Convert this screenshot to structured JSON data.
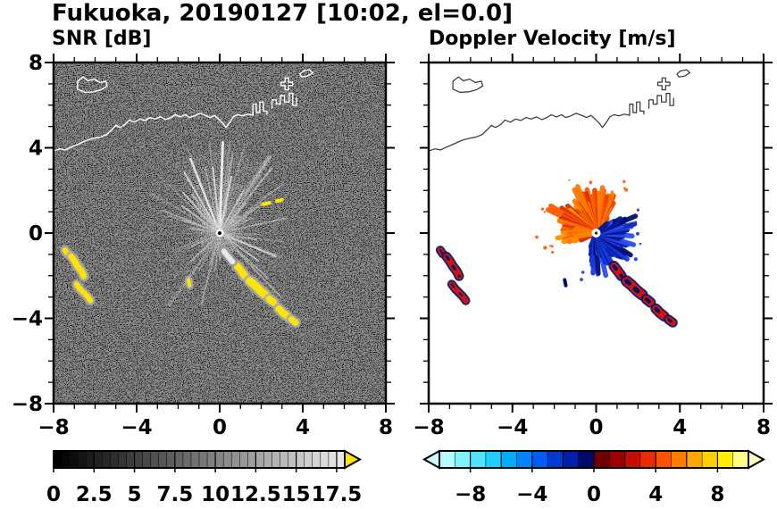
{
  "title": "Fukuoka, 20190127 [10:02, el=0.0]",
  "panels": {
    "snr": {
      "title": "SNR [dB]"
    },
    "doppler": {
      "title": "Doppler Velocity [m/s]"
    }
  },
  "axes": {
    "x_range": [
      -8,
      8
    ],
    "y_range": [
      -8,
      8
    ],
    "minor_tick_step": 1,
    "x_tick_values": [
      -8,
      -4,
      0,
      4,
      8
    ],
    "x_tick_labels": [
      "−8",
      "−4",
      "0",
      "4",
      "8"
    ],
    "y_tick_values": [
      8,
      4,
      0,
      -4,
      -8
    ],
    "y_tick_labels": [
      "8",
      "4",
      "0",
      "−4",
      "−8"
    ]
  },
  "colorbars": {
    "snr": {
      "min": 0,
      "max": 18,
      "segments": 36,
      "start_color": "#000000",
      "end_color": "#e8e8e8",
      "over_arrow_color": "#ffe400",
      "tick_values": [
        0,
        2.5,
        5,
        7.5,
        10,
        12.5,
        15,
        17.5
      ],
      "tick_labels": [
        "0",
        "2.5",
        "5",
        "7.5",
        "10",
        "12.5",
        "15",
        "17.5"
      ]
    },
    "doppler": {
      "min": -10,
      "max": 10,
      "segment_colors": [
        "#b6fdff",
        "#7ff3ff",
        "#4fe3ff",
        "#22ccff",
        "#00acff",
        "#0084ff",
        "#005cf2",
        "#003ad4",
        "#0020ac",
        "#000a6a",
        "#6e0000",
        "#9c0000",
        "#c80c00",
        "#e82c00",
        "#ff5200",
        "#ff7c00",
        "#ffa600",
        "#ffd000",
        "#fff000",
        "#ffff86"
      ],
      "under_arrow_color": "#ccfcff",
      "over_arrow_color": "#ffffbe",
      "tick_values": [
        -8,
        -4,
        0,
        4,
        8
      ],
      "tick_labels": [
        "−8",
        "−4",
        "0",
        "4",
        "8"
      ]
    }
  },
  "chart_data": {
    "type": "heatmap",
    "title": "Fukuoka, 20190127 [10:02, el=0.0]",
    "description": "Dual-panel Doppler radar PPI over Fukuoka / Hakata Bay, elevation 0.0 deg, 10:02. Left: SNR [dB], grayscale 0-17.5 dB with yellow for saturated echoes, black background with radial clutter streaks from the radar at (0,0). Right: Doppler velocity [m/s], cyan/blue negative (toward) lobe east-southeast of radar, dark-red/orange/yellow positive (away) lobe north-northwest of radar. Coastline drawn across the upper part of both panels. Axes: distance from radar, -8 to 8 km.",
    "x_range": [
      -8,
      8
    ],
    "y_range": [
      -8,
      8
    ],
    "radar_center": [
      0,
      0
    ],
    "coastline": {
      "open_paths": [
        [
          [
            -8,
            3.85
          ],
          [
            -7.7,
            3.95
          ],
          [
            -7.45,
            3.9
          ],
          [
            -7.1,
            4.05
          ],
          [
            -6.75,
            4.2
          ],
          [
            -6.4,
            4.35
          ],
          [
            -6.05,
            4.45
          ],
          [
            -5.75,
            4.5
          ],
          [
            -5.45,
            4.62
          ],
          [
            -5.2,
            4.85
          ],
          [
            -5.0,
            5.05
          ],
          [
            -4.8,
            4.95
          ],
          [
            -4.55,
            5.1
          ],
          [
            -4.35,
            5.3
          ],
          [
            -4.1,
            5.2
          ],
          [
            -3.85,
            5.35
          ],
          [
            -3.6,
            5.28
          ],
          [
            -3.35,
            5.42
          ],
          [
            -3.1,
            5.35
          ],
          [
            -2.85,
            5.45
          ],
          [
            -2.6,
            5.32
          ],
          [
            -2.35,
            5.42
          ],
          [
            -2.15,
            5.55
          ],
          [
            -1.9,
            5.45
          ],
          [
            -1.65,
            5.55
          ],
          [
            -1.45,
            5.42
          ],
          [
            -1.2,
            5.5
          ],
          [
            -0.95,
            5.62
          ],
          [
            -0.7,
            5.52
          ],
          [
            -0.45,
            5.42
          ],
          [
            -0.25,
            5.52
          ],
          [
            -0.05,
            5.35
          ],
          [
            0.15,
            5.15
          ],
          [
            0.3,
            4.95
          ],
          [
            0.5,
            5.2
          ],
          [
            0.65,
            5.45
          ],
          [
            0.85,
            5.55
          ],
          [
            1.1,
            5.5
          ],
          [
            1.35,
            5.58
          ],
          [
            1.6,
            5.52
          ]
        ],
        [
          [
            1.6,
            5.52
          ],
          [
            1.6,
            6.05
          ],
          [
            1.76,
            6.05
          ],
          [
            1.76,
            5.65
          ],
          [
            1.93,
            5.65
          ],
          [
            1.93,
            6.15
          ],
          [
            2.1,
            6.15
          ],
          [
            2.1,
            5.72
          ],
          [
            2.28,
            5.72
          ],
          [
            2.28,
            5.58
          ]
        ],
        [
          [
            2.52,
            5.85
          ],
          [
            2.52,
            6.25
          ],
          [
            2.72,
            6.25
          ],
          [
            2.72,
            6.05
          ],
          [
            2.92,
            6.05
          ],
          [
            2.92,
            6.45
          ],
          [
            3.12,
            6.45
          ],
          [
            3.12,
            6.15
          ],
          [
            3.35,
            6.15
          ],
          [
            3.35,
            6.55
          ],
          [
            3.52,
            6.55
          ],
          [
            3.52,
            5.98
          ],
          [
            3.7,
            5.98
          ],
          [
            3.7,
            6.32
          ]
        ]
      ],
      "closed_paths": [
        [
          [
            -6.85,
            6.75
          ],
          [
            -6.5,
            6.6
          ],
          [
            -6.1,
            6.62
          ],
          [
            -5.72,
            6.72
          ],
          [
            -5.42,
            6.9
          ],
          [
            -5.48,
            7.12
          ],
          [
            -5.78,
            7.06
          ],
          [
            -6.04,
            7.22
          ],
          [
            -6.34,
            7.14
          ],
          [
            -6.58,
            7.32
          ],
          [
            -6.84,
            7.12
          ]
        ],
        [
          [
            3.15,
            6.72
          ],
          [
            3.32,
            6.72
          ],
          [
            3.32,
            6.92
          ],
          [
            3.52,
            6.92
          ],
          [
            3.52,
            7.08
          ],
          [
            3.32,
            7.08
          ],
          [
            3.32,
            7.28
          ],
          [
            3.15,
            7.28
          ],
          [
            3.15,
            7.08
          ],
          [
            2.95,
            7.08
          ],
          [
            2.95,
            6.92
          ],
          [
            3.15,
            6.92
          ]
        ],
        [
          [
            3.95,
            7.32
          ],
          [
            4.22,
            7.36
          ],
          [
            4.48,
            7.52
          ],
          [
            4.32,
            7.66
          ],
          [
            4.02,
            7.6
          ],
          [
            3.86,
            7.46
          ]
        ]
      ]
    },
    "snr": {
      "rays": {
        "count": 110,
        "seed": 42,
        "r_min": 0.5,
        "r_max": 4.3
      },
      "bright_rays": [
        [
          88,
          4.25,
          3,
          "#d8d8d8"
        ],
        [
          96,
          3.1,
          2,
          "#b0b0b0"
        ],
        [
          78,
          2.7,
          2,
          "#b8b8b8"
        ],
        [
          112,
          3.75,
          2.5,
          "#c8c8c8"
        ],
        [
          121,
          3.3,
          2,
          "#a8a8a8"
        ],
        [
          133,
          2.6,
          2,
          "#989898"
        ],
        [
          145,
          2.2,
          1.8,
          "#909090"
        ],
        [
          60,
          2.3,
          2,
          "#9a9a9a"
        ],
        [
          48,
          1.9,
          1.6,
          "#8a8a8a"
        ],
        [
          30,
          1.5,
          1.5,
          "#808080"
        ],
        [
          160,
          1.9,
          1.5,
          "#7a7a7a"
        ],
        [
          172,
          1.4,
          1.5,
          "#707070"
        ],
        [
          338,
          2.9,
          2.2,
          "#a0a0a0"
        ],
        [
          325,
          2.3,
          1.8,
          "#8a8a8a"
        ],
        [
          350,
          1.8,
          1.6,
          "#7a7a7a"
        ],
        [
          205,
          1.5,
          1.5,
          "#6a6a6a"
        ],
        [
          228,
          1.3,
          1.4,
          "#666666"
        ],
        [
          252,
          1.6,
          1.5,
          "#6e6e6e"
        ],
        [
          270,
          1.25,
          1.4,
          "#646464"
        ],
        [
          292,
          1.5,
          1.4,
          "#6a6a6a"
        ],
        [
          315,
          1.2,
          1.3,
          "#606060"
        ]
      ],
      "center_echo": [
        [
          0.2,
          -0.85
        ],
        [
          0.4,
          -1.1
        ],
        [
          0.62,
          -1.35
        ]
      ],
      "yellow_dashes": [
        [
          [
            2.1,
            1.35
          ],
          [
            2.4,
            1.42
          ]
        ],
        [
          [
            2.75,
            1.5
          ],
          [
            3.0,
            1.56
          ]
        ]
      ]
    },
    "doppler": {
      "fans": [
        {
          "name": "away-orange",
          "az_start": 52,
          "az_end": 205,
          "r_min": 0.7,
          "r_max": 2.6,
          "seed": 7,
          "inner_r": 0.85,
          "inner_fill": "#ff5f00",
          "colors": [
            "#ff5a00",
            "#ff7a00",
            "#e84400",
            "#ff9000",
            "#d83000"
          ],
          "edge_dots": 14
        },
        {
          "name": "toward-blue",
          "az_start": -112,
          "az_end": 42,
          "r_min": 0.6,
          "r_max": 2.3,
          "seed": 11,
          "inner_r": 0.8,
          "inner_fill": "#0a1fb4",
          "colors": [
            "#1638e0",
            "#0d28bc",
            "#061a96",
            "#2b4df5",
            "#000d70"
          ],
          "edge_dots": 10
        },
        {
          "name": "west-streak",
          "az_start": 168,
          "az_end": 192,
          "r_min": 0.9,
          "r_max": 1.6,
          "seed": 3,
          "inner_r": 0.5,
          "inner_fill": "#ff7000",
          "colors": [
            "#ff6a00",
            "#ff8400"
          ],
          "edge_dots": 3
        }
      ]
    },
    "echoes": [
      {
        "path": [
          [
            -7.45,
            -0.8
          ],
          [
            -7.33,
            -0.97
          ]
        ],
        "w": 6
      },
      {
        "path": [
          [
            -7.15,
            -1.1
          ],
          [
            -7.0,
            -1.3
          ],
          [
            -6.85,
            -1.55
          ],
          [
            -6.65,
            -1.8
          ],
          [
            -6.55,
            -2.02
          ]
        ],
        "w": 7
      },
      {
        "path": [
          [
            -6.9,
            -2.4
          ],
          [
            -6.73,
            -2.62
          ],
          [
            -6.53,
            -2.82
          ],
          [
            -6.33,
            -3.02
          ],
          [
            -6.23,
            -3.17
          ]
        ],
        "w": 6
      },
      {
        "path": [
          [
            -1.5,
            -2.2
          ],
          [
            -1.45,
            -2.46
          ]
        ],
        "w": 4,
        "vel": "toward"
      },
      {
        "path": [
          [
            0.85,
            -1.55
          ],
          [
            1.05,
            -1.8
          ],
          [
            1.2,
            -2.0
          ]
        ],
        "w": 8
      },
      {
        "path": [
          [
            1.45,
            -2.25
          ],
          [
            1.7,
            -2.45
          ],
          [
            1.95,
            -2.7
          ],
          [
            2.2,
            -2.9
          ]
        ],
        "w": 9
      },
      {
        "path": [
          [
            2.4,
            -3.1
          ],
          [
            2.6,
            -3.26
          ]
        ],
        "w": 8
      },
      {
        "path": [
          [
            2.85,
            -3.55
          ],
          [
            3.05,
            -3.75
          ],
          [
            3.25,
            -3.9
          ]
        ],
        "w": 8
      },
      {
        "path": [
          [
            3.45,
            -4.05
          ],
          [
            3.66,
            -4.2
          ]
        ],
        "w": 7
      }
    ]
  }
}
